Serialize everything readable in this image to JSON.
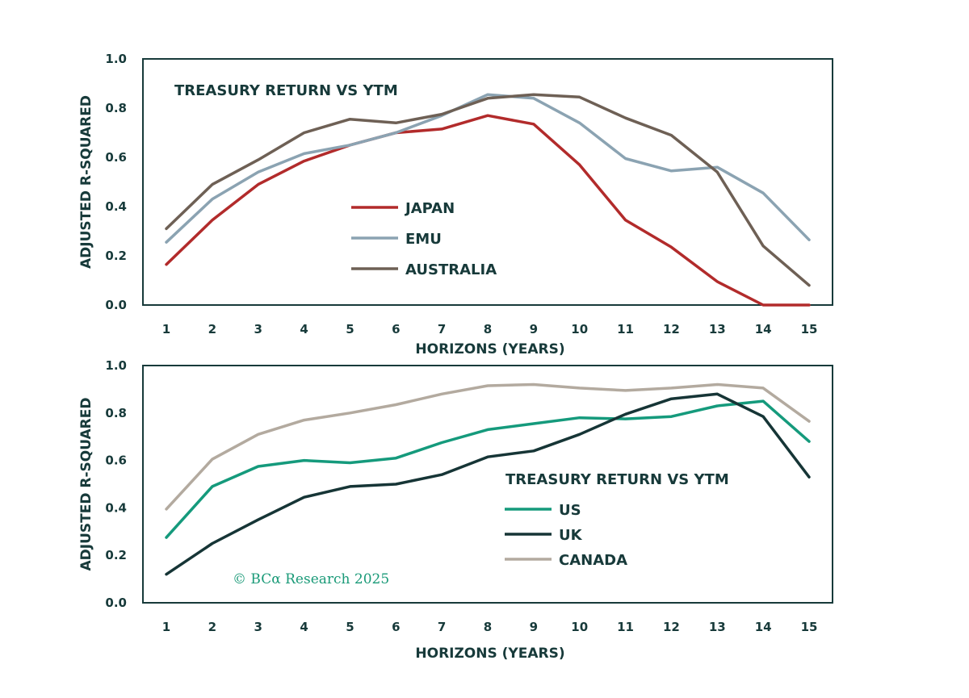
{
  "copyright": "© BCα Research 2025",
  "chart_data": [
    {
      "type": "line",
      "title": "TREASURY RETURN VS YTM",
      "xlabel": "HORIZONS (YEARS)",
      "ylabel": "ADJUSTED R-SQUARED",
      "ylim": [
        0,
        1
      ],
      "yticks": [
        "0.0",
        "0.2",
        "0.4",
        "0.6",
        "0.8",
        "1.0"
      ],
      "x": [
        1,
        2,
        3,
        4,
        5,
        6,
        7,
        8,
        9,
        10,
        11,
        12,
        13,
        14,
        15
      ],
      "legend_position": "center",
      "series": [
        {
          "name": "JAPAN",
          "color": "#b22b2b",
          "values": [
            0.165,
            0.345,
            0.49,
            0.585,
            0.65,
            0.7,
            0.715,
            0.77,
            0.735,
            0.57,
            0.345,
            0.235,
            0.095,
            0.0,
            0.0
          ]
        },
        {
          "name": "EMU",
          "color": "#8ba3b2",
          "values": [
            0.255,
            0.43,
            0.54,
            0.615,
            0.65,
            0.7,
            0.77,
            0.855,
            0.84,
            0.74,
            0.595,
            0.545,
            0.56,
            0.455,
            0.265
          ]
        },
        {
          "name": "AUSTRALIA",
          "color": "#6e6055",
          "values": [
            0.31,
            0.49,
            0.59,
            0.7,
            0.755,
            0.74,
            0.775,
            0.84,
            0.855,
            0.845,
            0.76,
            0.69,
            0.54,
            0.24,
            0.08
          ]
        }
      ]
    },
    {
      "type": "line",
      "title": "TREASURY RETURN VS YTM",
      "xlabel": "HORIZONS (YEARS)",
      "ylabel": "ADJUSTED R-SQUARED",
      "ylim": [
        0,
        1
      ],
      "yticks": [
        "0.0",
        "0.2",
        "0.4",
        "0.6",
        "0.8",
        "1.0"
      ],
      "x": [
        1,
        2,
        3,
        4,
        5,
        6,
        7,
        8,
        9,
        10,
        11,
        12,
        13,
        14,
        15
      ],
      "legend_position": "lower-right",
      "series": [
        {
          "name": "US",
          "color": "#159a7c",
          "values": [
            0.275,
            0.49,
            0.575,
            0.6,
            0.59,
            0.61,
            0.675,
            0.73,
            0.755,
            0.78,
            0.775,
            0.785,
            0.83,
            0.85,
            0.68
          ]
        },
        {
          "name": "UK",
          "color": "#163536",
          "values": [
            0.12,
            0.25,
            0.35,
            0.445,
            0.49,
            0.5,
            0.54,
            0.615,
            0.64,
            0.71,
            0.795,
            0.86,
            0.88,
            0.785,
            0.53
          ]
        },
        {
          "name": "CANADA",
          "color": "#b3aa9f",
          "values": [
            0.395,
            0.605,
            0.71,
            0.77,
            0.8,
            0.835,
            0.88,
            0.915,
            0.92,
            0.905,
            0.895,
            0.905,
            0.92,
            0.905,
            0.765
          ]
        }
      ]
    }
  ]
}
